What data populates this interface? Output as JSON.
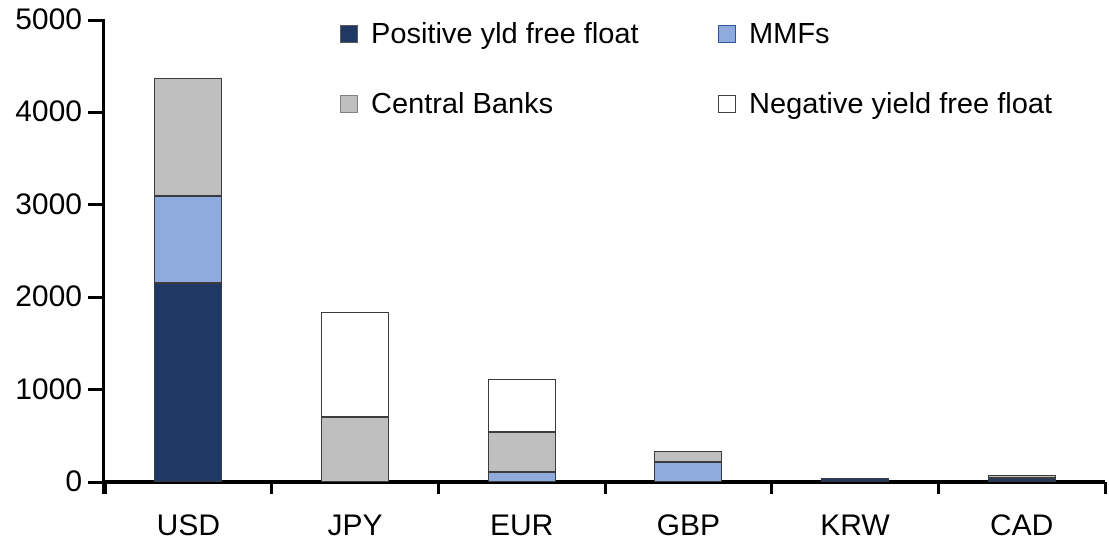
{
  "chart_data": {
    "type": "bar",
    "stacked": true,
    "title": "",
    "xlabel": "",
    "ylabel": "",
    "categories": [
      "USD",
      "JPY",
      "EUR",
      "GBP",
      "KRW",
      "CAD"
    ],
    "series": [
      {
        "name": "Positive yld free float",
        "color": "#1F3864",
        "values": [
          2150,
          0,
          0,
          0,
          45,
          40
        ]
      },
      {
        "name": "MMFs",
        "color": "#8FAADC",
        "values": [
          950,
          0,
          110,
          220,
          0,
          0
        ]
      },
      {
        "name": "Central Banks",
        "color": "#BFBFBF",
        "values": [
          1270,
          700,
          430,
          115,
          0,
          35
        ]
      },
      {
        "name": "Negative yield free float",
        "color": "#FFFFFF",
        "values": [
          0,
          1140,
          570,
          0,
          0,
          0
        ]
      }
    ],
    "totals": [
      4370,
      1840,
      1110,
      335,
      45,
      75
    ],
    "ylim": [
      0,
      5000
    ],
    "ytick_values": [
      0,
      1000,
      2000,
      3000,
      4000,
      5000
    ],
    "ytick_labels": [
      "0",
      "1000",
      "2000",
      "3000",
      "4000",
      "5000"
    ],
    "grid": false,
    "legend_position": "top"
  },
  "legend": {
    "items": [
      {
        "label": "Positive yld free float",
        "color": "#1F3864",
        "border": "#595959"
      },
      {
        "label": "MMFs",
        "color": "#8FAADC",
        "border": "#2E5597"
      },
      {
        "label": "Central Banks",
        "color": "#BFBFBF",
        "border": "#808080"
      },
      {
        "label": "Negative yield free float",
        "color": "#FFFFFF",
        "border": "#404040"
      }
    ]
  },
  "colors": {
    "axis": "#000000",
    "segment_border": "#3c3c3c",
    "background": "#ffffff"
  }
}
